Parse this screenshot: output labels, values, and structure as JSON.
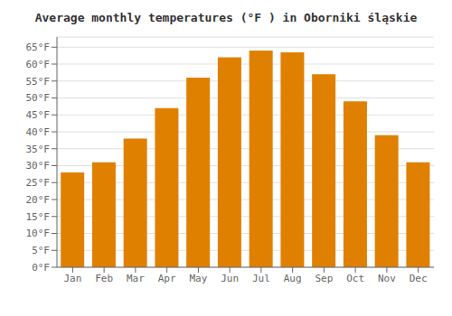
{
  "chart_data": {
    "type": "bar",
    "title": "Average monthly temperatures (°F ) in Oborniki śląskie",
    "categories": [
      "Jan",
      "Feb",
      "Mar",
      "Apr",
      "May",
      "Jun",
      "Jul",
      "Aug",
      "Sep",
      "Oct",
      "Nov",
      "Dec"
    ],
    "values": [
      28,
      31,
      38,
      47,
      56,
      62,
      64,
      63.5,
      57,
      49,
      39,
      31
    ],
    "color": "#E08000",
    "ylim": [
      0,
      68
    ],
    "yticks": [
      {
        "value": 0,
        "label": "0°F"
      },
      {
        "value": 5,
        "label": "5°F"
      },
      {
        "value": 10,
        "label": "10°F"
      },
      {
        "value": 15,
        "label": "15°F"
      },
      {
        "value": 20,
        "label": "20°F"
      },
      {
        "value": 25,
        "label": "25°F"
      },
      {
        "value": 30,
        "label": "30°F"
      },
      {
        "value": 35,
        "label": "35°F"
      },
      {
        "value": 40,
        "label": "40°F"
      },
      {
        "value": 45,
        "label": "45°F"
      },
      {
        "value": 50,
        "label": "50°F"
      },
      {
        "value": 55,
        "label": "55°F"
      },
      {
        "value": 60,
        "label": "60°F"
      },
      {
        "value": 65,
        "label": "65°F"
      }
    ],
    "grid": true
  }
}
